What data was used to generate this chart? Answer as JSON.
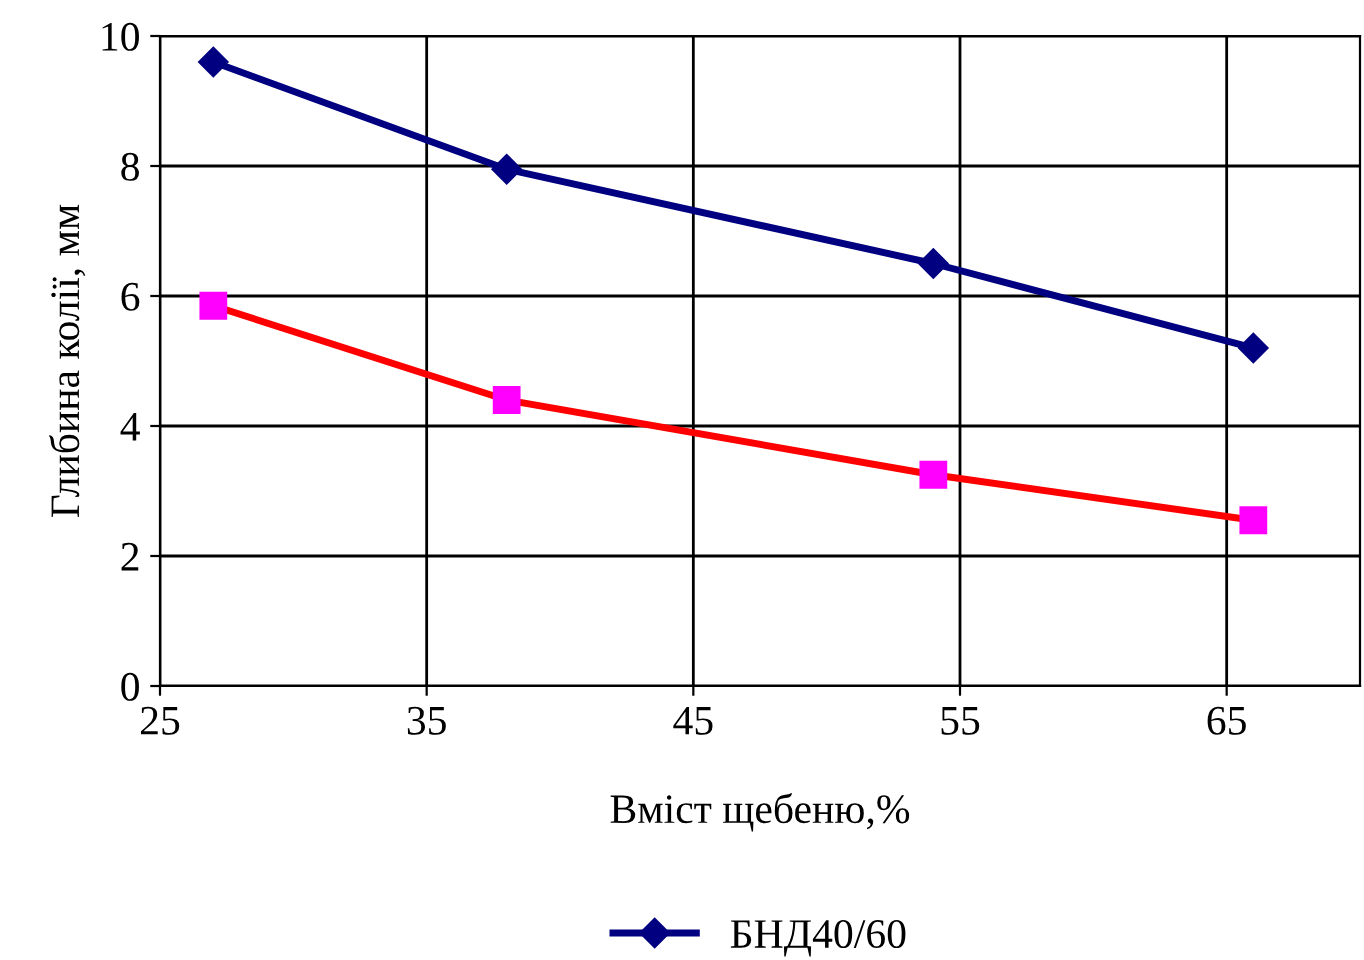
{
  "chart_data": {
    "type": "line",
    "xlabel": "Вміст щебеню,%",
    "ylabel": "Глибина колії, мм",
    "x": [
      27,
      38,
      54,
      66
    ],
    "series": [
      {
        "name": "БНД40/60",
        "color": "#000080",
        "values": [
          9.6,
          7.95,
          6.5,
          5.2
        ],
        "marker": "diamond"
      },
      {
        "color": "#ff0000",
        "values": [
          5.85,
          4.4,
          3.25,
          2.55
        ],
        "marker": "square",
        "colors": [
          "#ff00ff",
          "#ff00ff",
          "#ff00ff",
          "#ff00ff"
        ]
      }
    ],
    "xlim": [
      25,
      70
    ],
    "xticks": [
      25,
      35,
      45,
      55,
      65
    ],
    "ylim": [
      0,
      10
    ],
    "yticks": [
      0,
      2,
      4,
      6,
      8,
      10
    ],
    "grid": true,
    "legend": "bottom",
    "line_style": "solid"
  }
}
